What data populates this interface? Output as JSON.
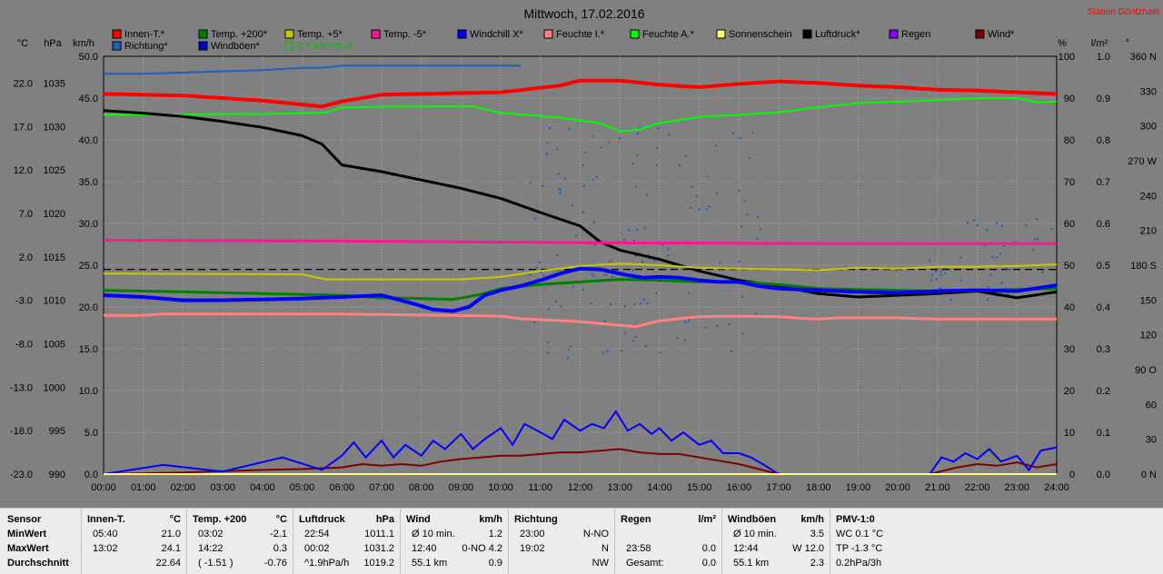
{
  "chart_data": {
    "type": "line",
    "title": "Mittwoch, 17.02.2016",
    "station": "Station Göritzhain",
    "axis_units": {
      "c": "°C",
      "hpa": "hPa",
      "kmh": "km/h",
      "pct": "%",
      "rain": "l/m²",
      "deg": "°"
    },
    "x_ticks": [
      "00:00",
      "01:00",
      "02:00",
      "03:00",
      "04:00",
      "05:00",
      "06:00",
      "07:00",
      "08:00",
      "09:00",
      "10:00",
      "11:00",
      "12:00",
      "13:00",
      "14:00",
      "15:00",
      "16:00",
      "17:00",
      "18:00",
      "19:00",
      "20:00",
      "21:00",
      "22:00",
      "23:00",
      "24:00"
    ],
    "y_c_ticks": [
      "22.0",
      "17.0",
      "12.0",
      "7.0",
      "2.0",
      "-3.0",
      "-8.0",
      "-13.0",
      "-18.0",
      "-23.0"
    ],
    "y_c_range": [
      -23,
      27
    ],
    "y_hpa_ticks": [
      "1035",
      "1030",
      "1025",
      "1020",
      "1015",
      "1010",
      "1005",
      "1000",
      "995",
      "990"
    ],
    "y_hpa_range": [
      990,
      1040
    ],
    "y_kmh_ticks": [
      "50.0",
      "45.0",
      "40.0",
      "35.0",
      "30.0",
      "25.0",
      "20.0",
      "15.0",
      "10.0",
      "5.0",
      "0.0"
    ],
    "y_kmh_range": [
      0,
      50
    ],
    "y_pct_ticks": [
      "100",
      "90",
      "80",
      "70",
      "60",
      "50",
      "40",
      "30",
      "20",
      "10",
      "0"
    ],
    "y_rain_ticks": [
      "1.0",
      "0.9",
      "0.8",
      "0.7",
      "0.6",
      "0.5",
      "0.4",
      "0.3",
      "0.2",
      "0.1",
      "0.0"
    ],
    "y_deg_ticks": [
      "360 N",
      "330",
      "300",
      "270 W",
      "240",
      "210",
      "180 S",
      "150",
      "120",
      "90 O",
      "60",
      "30",
      "0 N"
    ],
    "legend": [
      {
        "label": "Innen-T.*",
        "color": "#ff0000"
      },
      {
        "label": "Temp. +200*",
        "color": "#008000"
      },
      {
        "label": "Temp. +5*",
        "color": "#c8c800"
      },
      {
        "label": "Temp. -5*",
        "color": "#ff1493"
      },
      {
        "label": "Windchill X*",
        "color": "#0000ff"
      },
      {
        "label": "Feuchte I.*",
        "color": "#ff8080"
      },
      {
        "label": "Feuchte A.*",
        "color": "#00ff00"
      },
      {
        "label": "Sonnenschein",
        "color": "#ffff80"
      },
      {
        "label": "Luftdruck*",
        "color": "#000000"
      },
      {
        "label": "Regen",
        "color": "#8000ff"
      },
      {
        "label": "Wind*",
        "color": "#800000"
      },
      {
        "label": "Richtung*",
        "color": "#1f5fbf"
      },
      {
        "label": "Windböen*",
        "color": "#0000c0"
      },
      {
        "label": "0.8 Monat-Ø",
        "color": "#00c000"
      }
    ],
    "series": [
      {
        "name": "Innen-T.*",
        "axis": "c",
        "color": "#ff0000",
        "width": 4,
        "x": [
          0,
          2,
          4,
          5.5,
          6,
          7,
          9,
          10,
          11.5,
          12,
          13,
          14,
          15,
          16,
          17,
          18,
          19,
          20,
          21,
          22,
          23,
          24
        ],
        "y": [
          22.5,
          22.3,
          21.7,
          21.0,
          21.6,
          22.4,
          22.6,
          22.7,
          23.5,
          24.1,
          24.1,
          23.6,
          23.3,
          23.7,
          24.0,
          23.8,
          23.5,
          23.3,
          23.0,
          22.9,
          22.7,
          22.5
        ]
      },
      {
        "name": "Feuchte A.*",
        "axis": "pct",
        "color": "#00ff00",
        "width": 2,
        "x": [
          0,
          4,
          5.6,
          6,
          8,
          9.3,
          10,
          11.5,
          12.5,
          13,
          13.5,
          14,
          15,
          16,
          17,
          18,
          19,
          21,
          22,
          23,
          23.5,
          24
        ],
        "y": [
          86,
          86.2,
          86.5,
          87.8,
          88,
          88,
          86.5,
          85.3,
          84,
          82,
          82.5,
          84,
          85.5,
          86,
          86.6,
          87.8,
          88.8,
          89.5,
          90,
          90,
          89,
          89.2
        ]
      },
      {
        "name": "Luftdruck*",
        "axis": "hpa",
        "color": "#000000",
        "width": 3,
        "x": [
          0,
          1,
          2,
          3,
          4,
          5,
          5.5,
          6,
          7,
          8,
          9,
          10,
          11,
          12,
          12.5,
          13,
          14,
          15,
          16,
          17,
          18,
          19,
          20,
          21,
          22,
          23,
          24
        ],
        "y": [
          1033.5,
          1033.2,
          1032.8,
          1032.2,
          1031.5,
          1030.5,
          1029.5,
          1027,
          1026.2,
          1025.2,
          1024.2,
          1023,
          1021.3,
          1019.7,
          1017.8,
          1016.8,
          1015.7,
          1014.3,
          1013.2,
          1012.5,
          1011.6,
          1011.2,
          1011.4,
          1011.6,
          1011.9,
          1011.1,
          1011.8
        ]
      },
      {
        "name": "Temp. -5*",
        "axis": "c",
        "color": "#ff1493",
        "width": 3,
        "x": [
          0,
          6,
          12,
          18,
          24
        ],
        "y": [
          5.0,
          4.9,
          4.7,
          4.6,
          4.6
        ]
      },
      {
        "name": "Temp. +5*",
        "axis": "c",
        "color": "#c8c800",
        "width": 2,
        "x": [
          0,
          5,
          5.6,
          9,
          10,
          11,
          12,
          13,
          14,
          15,
          16,
          17,
          18,
          19,
          20,
          21,
          22,
          23,
          24
        ],
        "y": [
          1.0,
          0.9,
          0.3,
          0.3,
          0.6,
          1.3,
          1.9,
          2.2,
          2.0,
          1.7,
          1.6,
          1.5,
          1.4,
          1.7,
          1.6,
          1.8,
          1.8,
          1.9,
          2.1
        ]
      },
      {
        "name": "Temp. +200*",
        "axis": "c",
        "color": "#008000",
        "width": 3,
        "x": [
          0,
          2,
          5,
          6,
          7,
          8,
          8.8,
          9.5,
          10,
          11,
          12,
          13,
          14,
          15,
          16,
          17,
          18,
          19,
          20,
          21,
          22,
          23,
          24
        ],
        "y": [
          -1.0,
          -1.2,
          -1.5,
          -1.6,
          -1.9,
          -2.0,
          -2.1,
          -1.5,
          -0.8,
          -0.3,
          0.0,
          0.3,
          0.2,
          0.0,
          0.0,
          -0.3,
          -0.8,
          -0.9,
          -1.0,
          -1.1,
          -1.0,
          -0.9,
          -0.8
        ]
      },
      {
        "name": "Windchill X*",
        "axis": "c",
        "color": "#0000ff",
        "width": 4,
        "x": [
          0,
          1,
          2,
          3,
          4,
          5,
          6,
          7,
          7.8,
          8.3,
          8.8,
          9.2,
          9.6,
          10,
          10.5,
          11,
          11.5,
          12,
          12.5,
          12.8,
          13.2,
          13.6,
          14,
          14.5,
          15,
          15.5,
          16,
          16.5,
          17,
          18,
          19,
          20,
          21,
          22,
          23,
          24
        ],
        "y": [
          -1.6,
          -1.8,
          -2.2,
          -2.2,
          -2.1,
          -2.0,
          -1.8,
          -1.6,
          -2.6,
          -3.3,
          -3.5,
          -3.0,
          -1.6,
          -1.0,
          -0.5,
          0.2,
          1.0,
          1.6,
          1.5,
          1.2,
          0.8,
          0.5,
          0.6,
          0.5,
          0.2,
          0.0,
          0.0,
          -0.5,
          -0.8,
          -1.0,
          -1.2,
          -1.3,
          -1.1,
          -1.0,
          -1.1,
          -0.4
        ]
      },
      {
        "name": "Feuchte I.*",
        "axis": "pct",
        "color": "#ff8080",
        "width": 3,
        "x": [
          0,
          1,
          1.5,
          6,
          7,
          10,
          10.5,
          12,
          13,
          13.4,
          14,
          15,
          16,
          17,
          17.5,
          18,
          18.5,
          20,
          21,
          24
        ],
        "y": [
          38,
          38,
          38.3,
          38.3,
          38.2,
          37.8,
          37.2,
          36.5,
          35.6,
          35.3,
          36.7,
          37.7,
          37.8,
          37.7,
          37.3,
          37.1,
          37.4,
          37.4,
          37.1,
          37.1
        ]
      },
      {
        "name": "Sonnenschein",
        "axis": "c",
        "color": "#ffff80",
        "width": 2,
        "x": [
          0,
          24
        ],
        "y": [
          -23,
          -23
        ]
      },
      {
        "name": "Richtung*",
        "axis": "deg",
        "color": "#1f5fbf",
        "width": 2,
        "x": [
          0,
          1,
          2,
          3,
          4,
          5,
          5.5,
          6,
          7,
          8,
          9,
          10,
          10.5
        ],
        "y": [
          345,
          345,
          346,
          347,
          348,
          350,
          350,
          352,
          352,
          352,
          352,
          352,
          352
        ]
      }
    ],
    "wind": {
      "windboeen": {
        "x": [
          0,
          1.5,
          3,
          4.5,
          5.5,
          6,
          6.3,
          6.6,
          7,
          7.3,
          7.6,
          8,
          8.3,
          8.6,
          9,
          9.3,
          9.6,
          10,
          10.3,
          10.6,
          11,
          11.3,
          11.6,
          12,
          12.3,
          12.6,
          12.9,
          13.2,
          13.5,
          13.8,
          14,
          14.3,
          14.6,
          15,
          15.3,
          15.6,
          16,
          16.3,
          16.6,
          17,
          20.8,
          21.1,
          21.4,
          21.7,
          22,
          22.3,
          22.6,
          23,
          23.3,
          23.6,
          24
        ],
        "y": [
          0,
          1.1,
          0.3,
          2.0,
          0.5,
          2.2,
          3.8,
          2.0,
          4.0,
          2.0,
          3.5,
          2.2,
          4.0,
          3.0,
          4.8,
          3.0,
          4.2,
          5.5,
          3.5,
          6.0,
          5.0,
          4.2,
          6.5,
          5.2,
          6.0,
          5.5,
          7.5,
          5.2,
          6.0,
          4.8,
          5.5,
          4.0,
          5.0,
          3.5,
          4.0,
          2.5,
          2.5,
          2.0,
          1.2,
          0,
          0,
          2.0,
          1.5,
          2.5,
          1.8,
          3.0,
          1.5,
          2.2,
          0.5,
          2.8,
          3.2
        ]
      },
      "wind": {
        "x": [
          0,
          2,
          4,
          5,
          6,
          6.5,
          7,
          7.5,
          8,
          8.5,
          9,
          9.5,
          10,
          10.5,
          11,
          11.5,
          12,
          12.5,
          13,
          13.5,
          14,
          14.5,
          15,
          15.5,
          16,
          16.5,
          17,
          20.8,
          21.5,
          22,
          22.5,
          23,
          23.5,
          24
        ],
        "y": [
          0,
          0.2,
          0.5,
          0.6,
          0.8,
          1.2,
          1.0,
          1.2,
          1.0,
          1.5,
          1.8,
          2.0,
          2.2,
          2.2,
          2.4,
          2.6,
          2.6,
          2.8,
          3.0,
          2.6,
          2.4,
          2.4,
          2.0,
          1.6,
          1.2,
          0.6,
          0,
          0,
          0.8,
          1.2,
          1.0,
          1.4,
          0.8,
          1.2
        ]
      },
      "monat_avg_rain": 0.49
    }
  },
  "stats": {
    "sensor": {
      "h": "Sensor",
      "rows": [
        "MinWert",
        "MaxWert",
        "Durchschnitt"
      ]
    },
    "innen": {
      "h": "Innen-T.",
      "unit": "°C",
      "rows": [
        [
          "05:40",
          "21.0"
        ],
        [
          "13:02",
          "24.1"
        ],
        [
          "",
          "22.64"
        ]
      ]
    },
    "temp200": {
      "h": "Temp. +200",
      "unit": "°C",
      "rows": [
        [
          "03:02",
          "-2.1"
        ],
        [
          "14:22",
          "0.3"
        ],
        [
          "( -1.51 )",
          "-0.76"
        ]
      ]
    },
    "luftdruck": {
      "h": "Luftdruck",
      "unit": "hPa",
      "rows": [
        [
          "22:54",
          "1011.1"
        ],
        [
          "00:02",
          "1031.2"
        ],
        [
          "^1.9hPa/h",
          "1019.2"
        ]
      ]
    },
    "wind": {
      "h": "Wind",
      "unit": "km/h",
      "rows": [
        [
          "Ø 10 min.",
          "1.2"
        ],
        [
          "12:40",
          "0-NO 4.2"
        ],
        [
          "55.1 km",
          "0.9"
        ]
      ]
    },
    "richtung": {
      "h": "Richtung",
      "unit": "",
      "rows": [
        [
          "23:00",
          "N-NO"
        ],
        [
          "19:02",
          "N"
        ],
        [
          "",
          "NW"
        ]
      ]
    },
    "regen": {
      "h": "Regen",
      "unit": "l/m²",
      "rows": [
        [
          "",
          ""
        ],
        [
          "23:58",
          "0.0"
        ],
        [
          "Gesamt:",
          "0.0"
        ]
      ]
    },
    "boeen": {
      "h": "Windböen",
      "unit": "km/h",
      "rows": [
        [
          "Ø 10 min.",
          "3.5"
        ],
        [
          "12:44",
          "W 12.0"
        ],
        [
          "55.1 km",
          "2.3"
        ]
      ]
    },
    "pmv": {
      "h": "PMV-1:0",
      "unit": "",
      "rows": [
        [
          "WC 0.1 °C",
          ""
        ],
        [
          "TP -1.3 °C",
          ""
        ],
        [
          "0.2hPa/3h",
          ""
        ]
      ]
    }
  }
}
